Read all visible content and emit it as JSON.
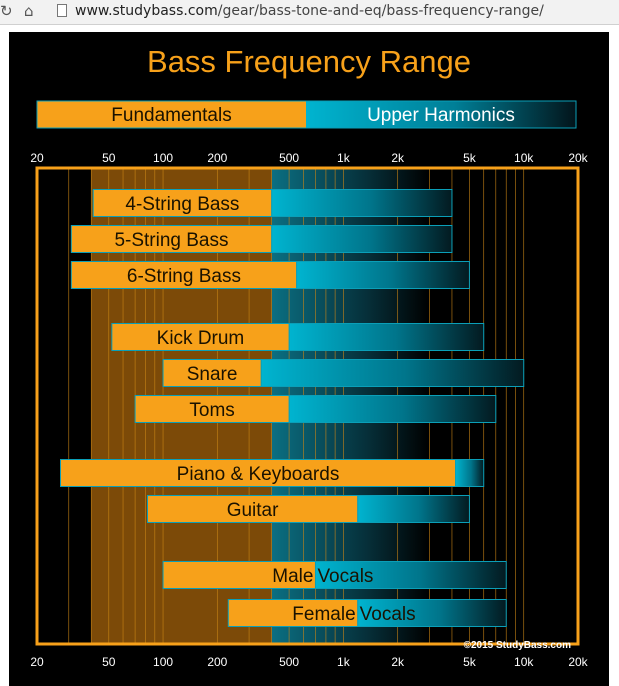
{
  "browser": {
    "reload_glyph": "↻",
    "home_glyph": "⌂",
    "url_domain": "www.studybass.com",
    "url_path": "/gear/bass-tone-and-eq/bass-frequency-range/",
    "icons": [
      "reload-icon",
      "home-icon",
      "page-icon"
    ]
  },
  "colors": {
    "orange": "#f7a11a",
    "cyan": "#00b4d0",
    "background": "#000000",
    "text_dark": "#1a1200",
    "text_light": "#ffffff"
  },
  "chart_data": {
    "type": "bar",
    "title": "Bass Frequency Range",
    "x_scale": "log",
    "xlim": [
      20,
      20000
    ],
    "x_unit": "Hz",
    "x_ticks": [
      {
        "value": 20,
        "label": "20"
      },
      {
        "value": 50,
        "label": "50"
      },
      {
        "value": 100,
        "label": "100"
      },
      {
        "value": 200,
        "label": "200"
      },
      {
        "value": 500,
        "label": "500"
      },
      {
        "value": 1000,
        "label": "1k"
      },
      {
        "value": 2000,
        "label": "2k"
      },
      {
        "value": 5000,
        "label": "5k"
      },
      {
        "value": 10000,
        "label": "10k"
      },
      {
        "value": 20000,
        "label": "20k"
      }
    ],
    "minor_gridlines": [
      30,
      40,
      50,
      60,
      70,
      80,
      90,
      100,
      200,
      300,
      400,
      500,
      600,
      700,
      800,
      900,
      1000,
      2000,
      3000,
      4000,
      5000,
      6000,
      7000,
      8000,
      9000,
      10000
    ],
    "bass_fundamental_zone": [
      40,
      400
    ],
    "legend": [
      {
        "label": "Fundamentals",
        "color": "#f7a11a"
      },
      {
        "label": "Upper Harmonics",
        "color": "#00b4d0"
      }
    ],
    "series_names": [
      "Fundamentals",
      "Upper Harmonics"
    ],
    "instruments": [
      {
        "label": "4-String Bass",
        "fundamental": [
          41,
          400
        ],
        "harmonics": [
          400,
          4000
        ]
      },
      {
        "label": "5-String Bass",
        "fundamental": [
          31,
          400
        ],
        "harmonics": [
          400,
          4000
        ]
      },
      {
        "label": "6-String Bass",
        "fundamental": [
          31,
          550
        ],
        "harmonics": [
          550,
          5000
        ]
      },
      {
        "label": "Kick Drum",
        "fundamental": [
          52,
          500
        ],
        "harmonics": [
          500,
          6000
        ]
      },
      {
        "label": "Snare",
        "fundamental": [
          100,
          350
        ],
        "harmonics": [
          350,
          10000
        ]
      },
      {
        "label": "Toms",
        "fundamental": [
          70,
          500
        ],
        "harmonics": [
          500,
          7000
        ]
      },
      {
        "label": "Piano & Keyboards",
        "fundamental": [
          27,
          4186
        ],
        "harmonics": [
          4186,
          6000
        ]
      },
      {
        "label": "Guitar",
        "fundamental": [
          82,
          1200
        ],
        "harmonics": [
          1200,
          5000
        ]
      },
      {
        "label": "Male Vocals",
        "label_parts": [
          "Male",
          "Vocals"
        ],
        "fundamental": [
          100,
          700
        ],
        "harmonics": [
          700,
          8000
        ]
      },
      {
        "label": "Female Vocals",
        "label_parts": [
          "Female",
          "Vocals"
        ],
        "fundamental": [
          230,
          1200
        ],
        "harmonics": [
          1200,
          8000
        ]
      }
    ],
    "copyright": "©2015 StudyBass.com"
  }
}
